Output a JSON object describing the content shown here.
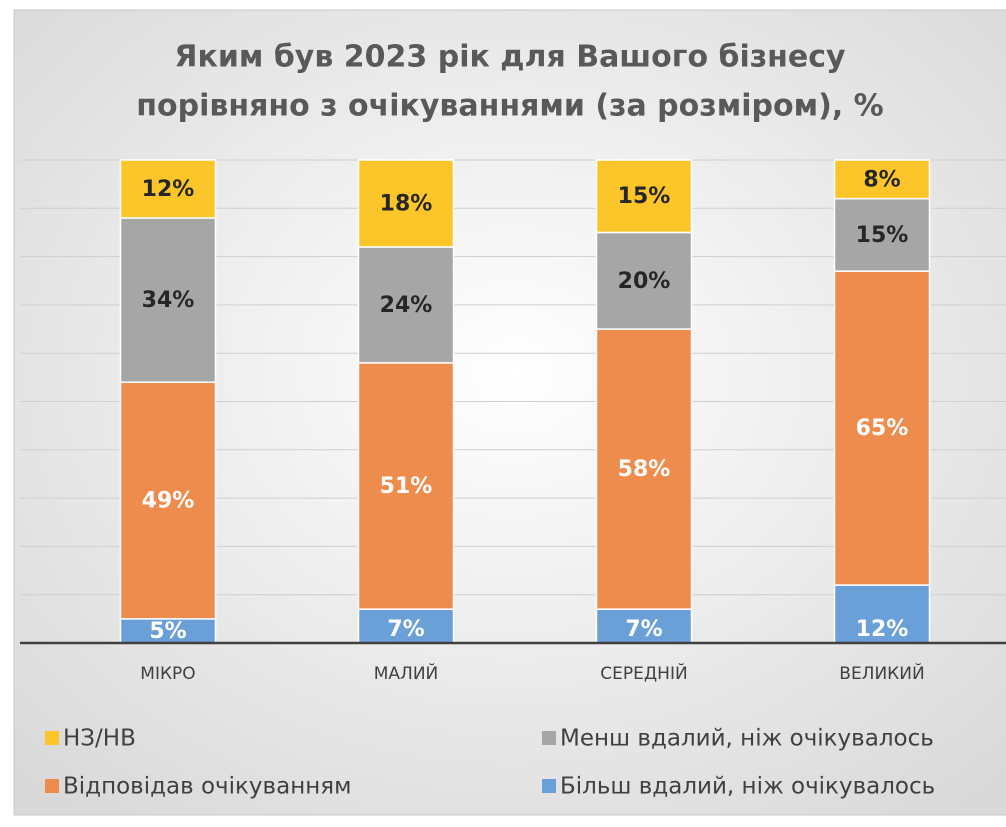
{
  "chart_data": {
    "type": "stacked_bar",
    "title": [
      "Яким був 2023 рік для Вашого бізнесу",
      "порівняно з очікуваннями (за розміром), %"
    ],
    "categories": [
      "МІКРО",
      "МАЛИЙ",
      "СЕРЕДНІЙ",
      "ВЕЛИКИЙ"
    ],
    "series": [
      {
        "name": "Більш вдалий, ніж очікувалось",
        "color": "#6a9fd8",
        "values": [
          5,
          7,
          7,
          12
        ],
        "value_labels": [
          "5%",
          "7%",
          "7%",
          "12%"
        ]
      },
      {
        "name": "Відповідав очікуванням",
        "color": "#ed8c4d",
        "values": [
          49,
          51,
          58,
          65
        ],
        "value_labels": [
          "49%",
          "51%",
          "58%",
          "65%"
        ]
      },
      {
        "name": "Менш вдалий, ніж очікувалось",
        "color": "#a6a6a6",
        "values": [
          34,
          24,
          20,
          15
        ],
        "value_labels": [
          "34%",
          "24%",
          "20%",
          "15%"
        ]
      },
      {
        "name": "НЗ/НВ",
        "color": "#fcc62b",
        "values": [
          12,
          18,
          15,
          8
        ],
        "value_labels": [
          "12%",
          "18%",
          "15%",
          "8%"
        ]
      }
    ],
    "ylim": [
      0,
      100
    ],
    "yticks": [
      0,
      10,
      20,
      30,
      40,
      50,
      60,
      70,
      80,
      90,
      100
    ],
    "grid": true
  }
}
